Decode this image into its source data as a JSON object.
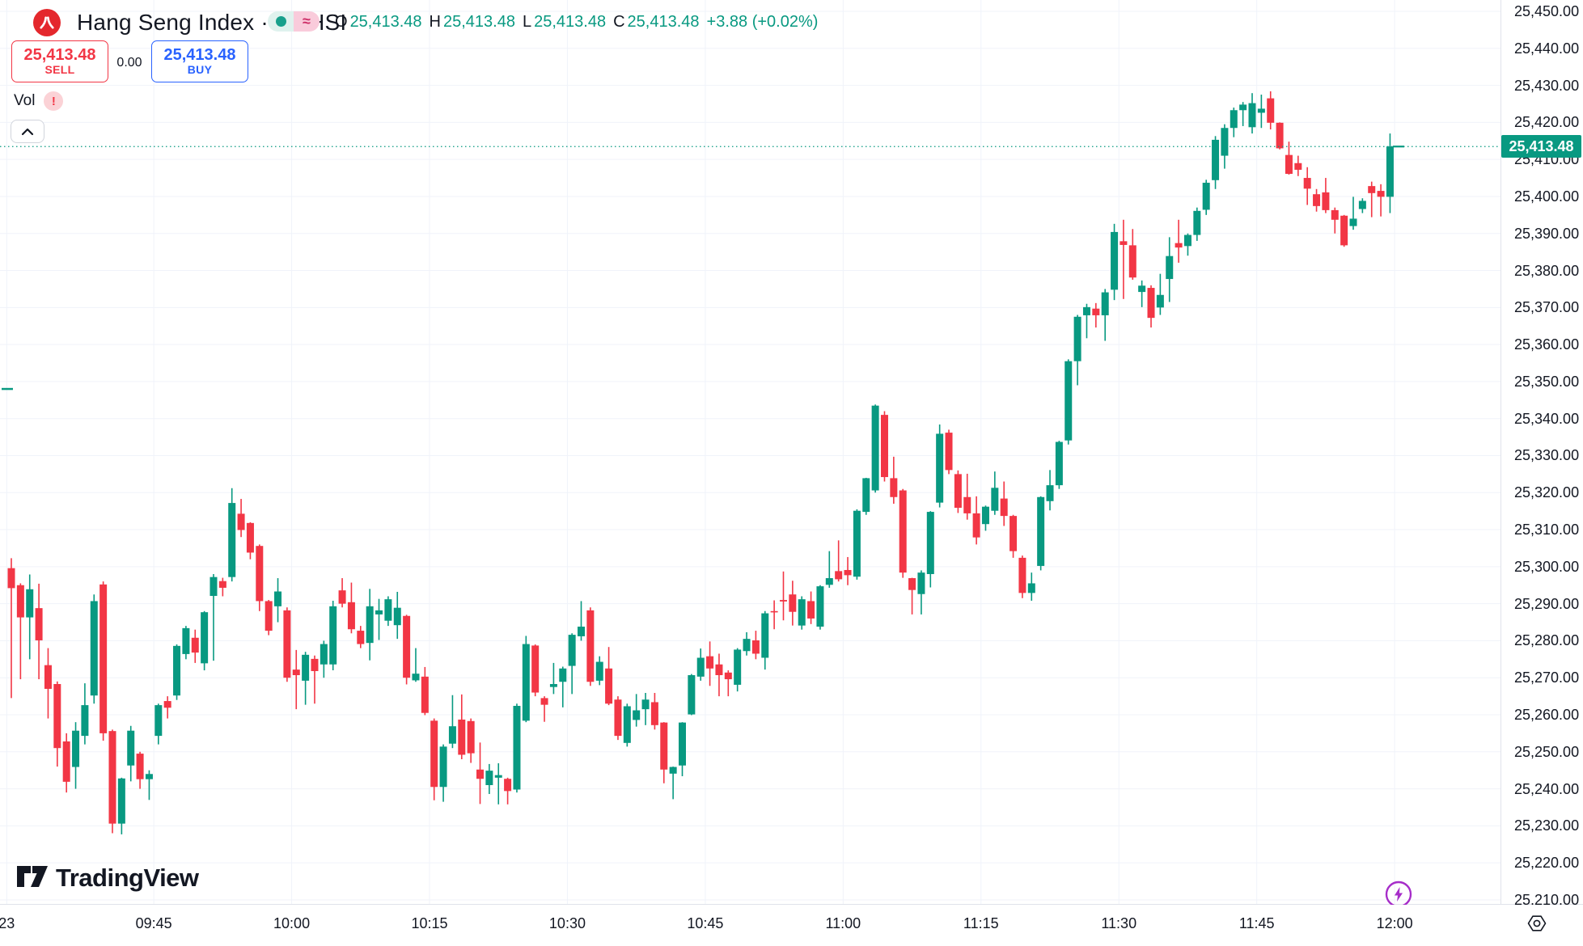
{
  "header": {
    "symbol_title": "Hang Seng Index · 1 · HSI",
    "ohlc": {
      "o_label": "O",
      "open": "25,413.48",
      "h_label": "H",
      "high": "25,413.48",
      "l_label": "L",
      "low": "25,413.48",
      "c_label": "C",
      "close": "25,413.48",
      "change": "+3.88 (+0.02%)"
    },
    "market_status": {
      "delay_symbol": "≈"
    },
    "trade_panel": {
      "sell_price": "25,413.48",
      "sell_label": "SELL",
      "spread": "0.00",
      "buy_price": "25,413.48",
      "buy_label": "BUY"
    },
    "indicator": {
      "label": "Vol",
      "warning_symbol": "!"
    }
  },
  "watermark": {
    "brand": "TradingView"
  },
  "price_scale": {
    "current_price_label": "25,413.48"
  },
  "colors": {
    "up": "#089981",
    "down": "#F23645",
    "buy_blue": "#2962FF",
    "grid": "#F0F3FA",
    "axis_text": "#131722",
    "current_line": "#089981",
    "purple": "#A62DC9",
    "logo_red": "#E4282D"
  },
  "chart_data": {
    "type": "candlestick",
    "title": "Hang Seng Index",
    "symbol": "HSI",
    "interval_minutes": 1,
    "start_time": "09:30",
    "end_time": "12:00",
    "current_price": 25413.48,
    "price_marker": 25348,
    "y_axis": {
      "label_min": 25210,
      "label_max": 25450,
      "tick_step": 10,
      "visible_min": 25209,
      "visible_max": 25453
    },
    "x_ticks": [
      {
        "label": "23",
        "i": -1
      },
      {
        "label": "09:45",
        "i": 15
      },
      {
        "label": "10:00",
        "i": 30
      },
      {
        "label": "10:15",
        "i": 45
      },
      {
        "label": "10:30",
        "i": 60
      },
      {
        "label": "10:45",
        "i": 75
      },
      {
        "label": "11:00",
        "i": 90
      },
      {
        "label": "11:15",
        "i": 105
      },
      {
        "label": "11:30",
        "i": 120
      },
      {
        "label": "11:45",
        "i": 135
      },
      {
        "label": "12:00",
        "i": 150
      }
    ],
    "candles": [
      [
        25299.6,
        25302.3,
        25264.5,
        25294.2
      ],
      [
        25295,
        25295.5,
        25269.6,
        25286.3
      ],
      [
        25286.3,
        25297.9,
        25275,
        25293.9
      ],
      [
        25288.8,
        25295.4,
        25269.6,
        25280.1
      ],
      [
        25273.4,
        25278,
        25259,
        25267
      ],
      [
        25268.3,
        25269,
        25246,
        25251
      ],
      [
        25252.8,
        25255,
        25239,
        25241.9
      ],
      [
        25245.9,
        25258,
        25240,
        25255.7
      ],
      [
        25254.3,
        25268.5,
        25252,
        25262.6
      ],
      [
        25265.2,
        25292.5,
        25263,
        25290.7
      ],
      [
        25295.2,
        25296,
        25253,
        25255
      ],
      [
        25255.6,
        25256,
        25228,
        25230.6
      ],
      [
        25230.6,
        25243,
        25227.7,
        25242.8
      ],
      [
        25246.3,
        25257,
        25242,
        25255.7
      ],
      [
        25249.5,
        25250,
        25240,
        25242.6
      ],
      [
        25242.6,
        25245,
        25237,
        25244
      ],
      [
        25254.3,
        25263,
        25252,
        25262.6
      ],
      [
        25263.7,
        25265,
        25259,
        25261.9
      ],
      [
        25265.2,
        25279,
        25264,
        25278.6
      ],
      [
        25276.4,
        25284,
        25275,
        25283.4
      ],
      [
        25280.8,
        25283,
        25274,
        25276.8
      ],
      [
        25273.9,
        25288,
        25272,
        25287.7
      ],
      [
        25292.1,
        25298,
        25274.6,
        25297.2
      ],
      [
        25296.1,
        25297,
        25292,
        25294.3
      ],
      [
        25297.2,
        25321.2,
        25296,
        25317.2
      ],
      [
        25314.3,
        25318.3,
        25308,
        25309.9
      ],
      [
        25311.8,
        25312,
        25302,
        25303.8
      ],
      [
        25305.6,
        25306,
        25288,
        25290.7
      ],
      [
        25290.7,
        25291,
        25281.5,
        25282.7
      ],
      [
        25289.3,
        25296.9,
        25285,
        25293.3
      ],
      [
        25288.2,
        25289,
        25268.9,
        25270
      ],
      [
        25272.2,
        25277.5,
        25261.5,
        25270.7
      ],
      [
        25269.2,
        25277,
        25262.7,
        25276.2
      ],
      [
        25275.1,
        25276,
        25263,
        25271.8
      ],
      [
        25273.6,
        25280,
        25270,
        25279.1
      ],
      [
        25273.6,
        25290.8,
        25272,
        25289.3
      ],
      [
        25293.6,
        25296.9,
        25289,
        25290
      ],
      [
        25290.4,
        25295.7,
        25282,
        25283.1
      ],
      [
        25282.7,
        25284,
        25278,
        25279.1
      ],
      [
        25279.4,
        25294,
        25274.7,
        25289.3
      ],
      [
        25287.1,
        25291.3,
        25280.2,
        25288.2
      ],
      [
        25285.4,
        25292,
        25284,
        25291.2
      ],
      [
        25284.2,
        25293.2,
        25280.5,
        25288.9
      ],
      [
        25286.7,
        25287,
        25268.2,
        25270
      ],
      [
        25269.3,
        25278,
        25268.9,
        25271.1
      ],
      [
        25270.3,
        25272.9,
        25259.9,
        25260.5
      ],
      [
        25258.4,
        25259,
        25236.9,
        25240.5
      ],
      [
        25240.5,
        25252,
        25236.5,
        25251.4
      ],
      [
        25252.2,
        25265.3,
        25251,
        25256.9
      ],
      [
        25258.7,
        25265.5,
        25248,
        25249.2
      ],
      [
        25258.3,
        25259,
        25247,
        25249.6
      ],
      [
        25245.2,
        25252.5,
        25235.9,
        25242.7
      ],
      [
        25241,
        25246.7,
        25238.6,
        25244.9
      ],
      [
        25243,
        25246.9,
        25235.8,
        25243.7
      ],
      [
        25242.7,
        25243,
        25235.8,
        25239.4
      ],
      [
        25239.8,
        25263,
        25239,
        25262.4
      ],
      [
        25258.4,
        25281.3,
        25258,
        25279.1
      ],
      [
        25278.7,
        25279,
        25265,
        25266
      ],
      [
        25264.5,
        25265,
        25258.1,
        25262.7
      ],
      [
        25267.5,
        25274,
        25265.6,
        25268.3
      ],
      [
        25268.9,
        25273,
        25262,
        25272.5
      ],
      [
        25273.2,
        25282,
        25265.6,
        25281.6
      ],
      [
        25281.2,
        25290.7,
        25280,
        25283.8
      ],
      [
        25288.2,
        25289,
        25267.8,
        25268.9
      ],
      [
        25269.2,
        25275.8,
        25268,
        25274.3
      ],
      [
        25272.5,
        25278.3,
        25262.6,
        25263
      ],
      [
        25264.1,
        25265,
        25253.2,
        25254.3
      ],
      [
        25252.4,
        25263,
        25251.4,
        25262.3
      ],
      [
        25258.6,
        25265.6,
        25256.8,
        25261.2
      ],
      [
        25261.5,
        25265.9,
        25257.2,
        25264.1
      ],
      [
        25263.4,
        25265.9,
        25256,
        25257.2
      ],
      [
        25257.9,
        25258,
        25241.5,
        25245.2
      ],
      [
        25244.1,
        25246,
        25237.2,
        25245.9
      ],
      [
        25246.3,
        25258,
        25243.4,
        25257.9
      ],
      [
        25260.1,
        25271,
        25259.9,
        25270.7
      ],
      [
        25270.3,
        25277.9,
        25269.2,
        25275.4
      ],
      [
        25275.8,
        25279.8,
        25267.8,
        25272.5
      ],
      [
        25273.6,
        25276.5,
        25265,
        25270.7
      ],
      [
        25271.4,
        25272,
        25265,
        25269.6
      ],
      [
        25268.1,
        25278,
        25266.3,
        25277.6
      ],
      [
        25277.2,
        25282.3,
        25276,
        25280.5
      ],
      [
        25280.1,
        25282.7,
        25275,
        25276.5
      ],
      [
        25275.4,
        25288,
        25272.2,
        25287.4
      ],
      [
        25288,
        25290.9,
        25283.1,
        25287.7
      ],
      [
        25291,
        25298.7,
        25285.5,
        25290.6
      ],
      [
        25292.5,
        25296.2,
        25284.1,
        25287.8
      ],
      [
        25284.1,
        25292,
        25283,
        25291.2
      ],
      [
        25290.7,
        25293.3,
        25284.5,
        25286
      ],
      [
        25283.8,
        25295,
        25283,
        25294.7
      ],
      [
        25295.1,
        25304.2,
        25294.3,
        25296.9
      ],
      [
        25298.8,
        25307.1,
        25296,
        25296.6
      ],
      [
        25299.1,
        25302.6,
        25295,
        25297.7
      ],
      [
        25297.3,
        25315.5,
        25296.5,
        25315.1
      ],
      [
        25314.8,
        25324,
        25314,
        25323.9
      ],
      [
        25320.6,
        25343.8,
        25320,
        25343.5
      ],
      [
        25341,
        25342,
        25323,
        25324.2
      ],
      [
        25323.9,
        25329.7,
        25317,
        25318.8
      ],
      [
        25320.6,
        25321,
        25297,
        25298.4
      ],
      [
        25296.9,
        25297,
        25287.1,
        25293.7
      ],
      [
        25292.6,
        25299,
        25287.1,
        25298.4
      ],
      [
        25298,
        25315,
        25294.4,
        25314.8
      ],
      [
        25317.3,
        25338.4,
        25316,
        25335.9
      ],
      [
        25336.2,
        25337,
        25325,
        25326.1
      ],
      [
        25325,
        25326,
        25314.5,
        25315.9
      ],
      [
        25318.8,
        25325.1,
        25312.7,
        25314.4
      ],
      [
        25314.4,
        25319,
        25306,
        25307.9
      ],
      [
        25311.5,
        25316.5,
        25309.7,
        25316.2
      ],
      [
        25315.1,
        25325.7,
        25314,
        25321.3
      ],
      [
        25318.4,
        25323,
        25311,
        25313.7
      ],
      [
        25313.7,
        25314,
        25302.4,
        25304.2
      ],
      [
        25302.4,
        25303,
        25291.5,
        25292.9
      ],
      [
        25292.9,
        25298.4,
        25290.8,
        25295.5
      ],
      [
        25300.2,
        25319,
        25299,
        25318.8
      ],
      [
        25317.7,
        25326.1,
        25315.2,
        25322
      ],
      [
        25322,
        25334,
        25321,
        25333.7
      ],
      [
        25334.1,
        25356,
        25333,
        25355.5
      ],
      [
        25355.5,
        25368,
        25349,
        25367.5
      ],
      [
        25367.9,
        25371,
        25361.7,
        25370.1
      ],
      [
        25369.7,
        25371.2,
        25364.6,
        25367.9
      ],
      [
        25367.9,
        25375,
        25361,
        25374.1
      ],
      [
        25374.8,
        25392.6,
        25372,
        25390.4
      ],
      [
        25387.9,
        25393.7,
        25372.3,
        25386.9
      ],
      [
        25386.8,
        25391.2,
        25377.5,
        25378.1
      ],
      [
        25374.2,
        25377.3,
        25370.1,
        25375.9
      ],
      [
        25375.3,
        25376,
        25364.6,
        25367.2
      ],
      [
        25370,
        25379.1,
        25368,
        25373.4
      ],
      [
        25377.7,
        25389,
        25371.5,
        25383.9
      ],
      [
        25387.4,
        25393.7,
        25382.1,
        25386.2
      ],
      [
        25386.6,
        25390,
        25384,
        25389.6
      ],
      [
        25389.6,
        25397,
        25388,
        25396.1
      ],
      [
        25396.4,
        25404.5,
        25395,
        25403.7
      ],
      [
        25404.4,
        25416.3,
        25402,
        25415.3
      ],
      [
        25411,
        25419.5,
        25407.5,
        25418.5
      ],
      [
        25418.5,
        25424,
        25416,
        25423.3
      ],
      [
        25423.3,
        25425.5,
        25419,
        25424.8
      ],
      [
        25418.7,
        25427.9,
        25417,
        25425.2
      ],
      [
        25422.6,
        25427.5,
        25418.5,
        25423.7
      ],
      [
        25426.5,
        25428.4,
        25418.1,
        25419.9
      ],
      [
        25419.9,
        25420,
        25412.7,
        25413
      ],
      [
        25411.2,
        25414.8,
        25405.9,
        25406.1
      ],
      [
        25409,
        25411,
        25405.5,
        25407.2
      ],
      [
        25405,
        25407.9,
        25397.7,
        25402.1
      ],
      [
        25400.6,
        25402,
        25395.9,
        25397.4
      ],
      [
        25401.1,
        25405,
        25395.5,
        25396.3
      ],
      [
        25396.3,
        25397,
        25390,
        25393.7
      ],
      [
        25394.8,
        25395,
        25386.4,
        25386.8
      ],
      [
        25392,
        25399.9,
        25391,
        25394
      ],
      [
        25396.6,
        25399.5,
        25395.5,
        25398.8
      ],
      [
        25402.8,
        25404,
        25394.4,
        25400.9
      ],
      [
        25401.5,
        25403.3,
        25394.6,
        25399.9
      ],
      [
        25399.9,
        25417,
        25395.5,
        25413.5
      ]
    ]
  }
}
